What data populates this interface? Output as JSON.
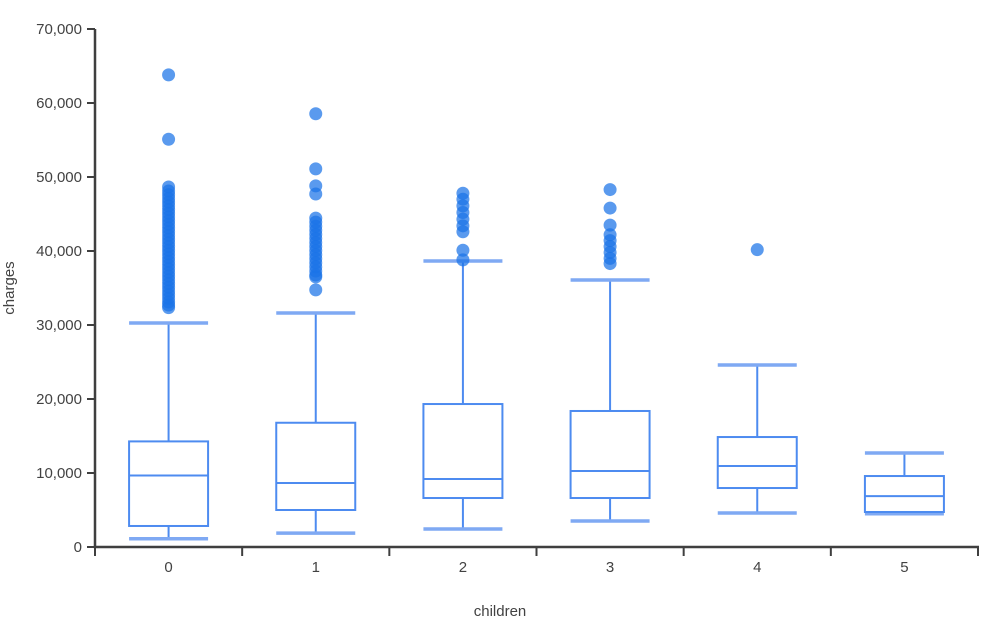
{
  "figure": {
    "title": "",
    "xlabel": "children",
    "ylabel": "charges"
  },
  "chart_data": {
    "type": "box",
    "title": "",
    "xlabel": "children",
    "ylabel": "charges",
    "categories": [
      "0",
      "1",
      "2",
      "3",
      "4",
      "5"
    ],
    "ylim": [
      0,
      70000
    ],
    "yticks": [
      0,
      10000,
      20000,
      30000,
      40000,
      50000,
      60000,
      70000
    ],
    "ytick_labels": [
      "0",
      "10,000",
      "20,000",
      "30,000",
      "40,000",
      "50,000",
      "60,000",
      "70,000"
    ],
    "grid": false,
    "legend_position": "none",
    "series": [
      {
        "category": "0",
        "whisker_low": 1122,
        "q1": 2840,
        "median": 9660,
        "q3": 14270,
        "whisker_high": 30270,
        "outliers": [
          63800,
          55100,
          48650,
          48100,
          47600,
          47100,
          46600,
          46100,
          45600,
          45100,
          44600,
          44100,
          43600,
          43100,
          42600,
          42100,
          41600,
          41100,
          40600,
          40100,
          39600,
          39100,
          38600,
          38100,
          37600,
          37100,
          36600,
          36100,
          35600,
          35100,
          34600,
          34100,
          33600,
          33100,
          32700,
          32350
        ]
      },
      {
        "category": "1",
        "whisker_low": 1880,
        "q1": 5000,
        "median": 8650,
        "q3": 16790,
        "whisker_high": 31620,
        "outliers": [
          58550,
          51100,
          48800,
          47700,
          44450,
          43900,
          43350,
          42800,
          42250,
          41700,
          41150,
          40600,
          40050,
          39500,
          38950,
          38400,
          37850,
          37300,
          36750,
          36500,
          34750
        ]
      },
      {
        "category": "2",
        "whisker_low": 2430,
        "q1": 6620,
        "median": 9190,
        "q3": 19320,
        "whisker_high": 38650,
        "outliers": [
          47800,
          47000,
          46100,
          45200,
          44300,
          43400,
          42600,
          40100,
          38800
        ]
      },
      {
        "category": "3",
        "whisker_low": 3510,
        "q1": 6620,
        "median": 10270,
        "q3": 18380,
        "whisker_high": 36080,
        "outliers": [
          48300,
          45800,
          43500,
          42200,
          41400,
          40600,
          39800,
          39000,
          38300
        ]
      },
      {
        "category": "4",
        "whisker_low": 4590,
        "q1": 7970,
        "median": 10950,
        "q3": 14860,
        "whisker_high": 24590,
        "outliers": [
          40180
        ]
      },
      {
        "category": "5",
        "whisker_low": 4500,
        "q1": 4730,
        "median": 6880,
        "q3": 9590,
        "whisker_high": 12700,
        "outliers": []
      }
    ],
    "colors": {
      "box_stroke": "#4d8bf0",
      "whisker_line": "#4d8bf0",
      "whisker_cap": "#7fa9f3",
      "outlier_fill": "#1a73e8",
      "outlier_opacity": "0.72",
      "axis_line": "#3f3f3f",
      "label_text": "#424242",
      "background": "#ffffff"
    }
  }
}
